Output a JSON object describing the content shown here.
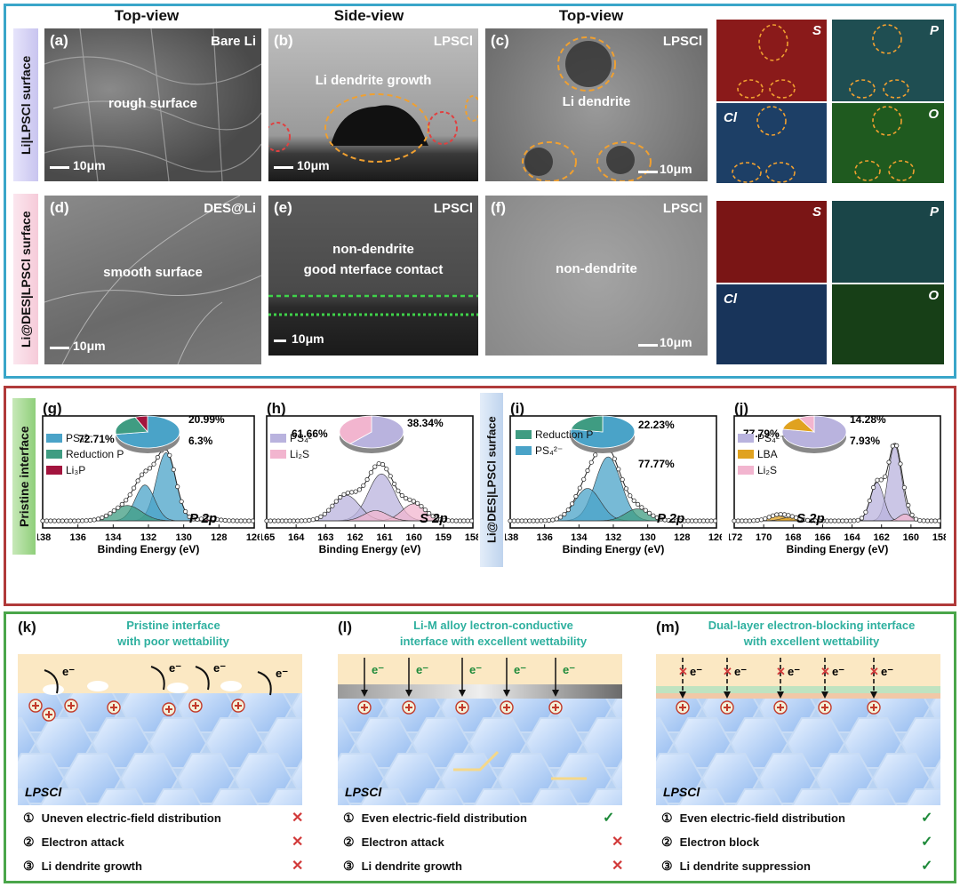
{
  "column_heads": {
    "top_view_1": "Top-view",
    "side_view": "Side-view",
    "top_view_2": "Top-view"
  },
  "row_labels": {
    "row1": "Li|LPSCl surface",
    "row2": "Li@DES|LPSCl surface",
    "pristine": "Pristine interface",
    "des": "Li@DES|LPSCl surface"
  },
  "panels": {
    "a": {
      "label": "(a)",
      "sample": "Bare Li",
      "annotation": "rough surface",
      "scale": "10μm"
    },
    "b": {
      "label": "(b)",
      "sample": "LPSCl",
      "annotation": "Li dendrite growth",
      "scale": "10μm"
    },
    "c": {
      "label": "(c)",
      "sample": "LPSCl",
      "annotation": "Li dendrite",
      "scale": "10μm"
    },
    "d": {
      "label": "(d)",
      "sample": "DES@Li",
      "annotation": "smooth surface",
      "scale": "10μm"
    },
    "e": {
      "label": "(e)",
      "sample": "LPSCl",
      "annotation_1": "non-dendrite",
      "annotation_2": "good nterface contact",
      "scale": "10μm"
    },
    "f": {
      "label": "(f)",
      "sample": "LPSCl",
      "annotation": "non-dendrite",
      "scale": "10μm"
    }
  },
  "eds_elements": [
    "S",
    "P",
    "Cl",
    "O"
  ],
  "eds_colors": {
    "S": "#8a1a1a",
    "P": "#1f4e52",
    "Cl": "#1d3f66",
    "O": "#1f5a1f"
  },
  "xps_axis_label": "Binding Energy (eV)",
  "chart_data": [
    {
      "type": "line",
      "panel": "(g)",
      "peak_label": "P 2p",
      "xlabel": "Binding Energy (eV)",
      "xlim": [
        138,
        126
      ],
      "x_ticks": [
        138,
        136,
        134,
        132,
        130,
        128,
        126
      ],
      "legend": [
        "PS₄²⁻",
        "Reduction P",
        "Li₃P"
      ],
      "peaks": [
        {
          "name": "PS₄²⁻",
          "center": 131.0,
          "height": 0.8,
          "width": 0.55
        },
        {
          "name": "PS₄²⁻",
          "center": 132.2,
          "height": 0.42,
          "width": 0.55
        },
        {
          "name": "Reduction P",
          "center": 133.2,
          "height": 0.18,
          "width": 0.8
        },
        {
          "name": "Li₃P",
          "center": 128.6,
          "height": 0.03,
          "width": 0.5
        }
      ],
      "pie": [
        {
          "name": "PS₄²⁻",
          "value": 72.71,
          "label": "72.71%"
        },
        {
          "name": "Reduction P",
          "value": 20.99,
          "label": "20.99%"
        },
        {
          "name": "Li₃P",
          "value": 6.3,
          "label": "6.3%"
        }
      ]
    },
    {
      "type": "line",
      "panel": "(h)",
      "peak_label": "S 2p",
      "xlabel": "Binding Energy (eV)",
      "xlim": [
        165,
        158
      ],
      "x_ticks": [
        165,
        164,
        163,
        162,
        161,
        160,
        159,
        158
      ],
      "legend": [
        "PS₄²⁻",
        "Li₂S"
      ],
      "peaks": [
        {
          "name": "PS₄²⁻",
          "center": 161.1,
          "height": 0.55,
          "width": 0.45
        },
        {
          "name": "PS₄²⁻",
          "center": 162.3,
          "height": 0.3,
          "width": 0.45
        },
        {
          "name": "Li₂S",
          "center": 160.0,
          "height": 0.2,
          "width": 0.4
        },
        {
          "name": "Li₂S",
          "center": 161.3,
          "height": 0.12,
          "width": 0.4
        }
      ],
      "pie": [
        {
          "name": "PS₄²⁻",
          "value": 61.66,
          "label": "61.66%"
        },
        {
          "name": "Li₂S",
          "value": 38.34,
          "label": "38.34%"
        }
      ]
    },
    {
      "type": "line",
      "panel": "(i)",
      "peak_label": "P 2p",
      "xlabel": "Binding Energy (eV)",
      "xlim": [
        138,
        126
      ],
      "x_ticks": [
        138,
        136,
        134,
        132,
        130,
        128,
        126
      ],
      "legend": [
        "Reduction P",
        "PS₄²⁻"
      ],
      "peaks": [
        {
          "name": "PS₄²⁻",
          "center": 132.3,
          "height": 0.75,
          "width": 0.75
        },
        {
          "name": "PS₄²⁻",
          "center": 133.5,
          "height": 0.38,
          "width": 0.75
        },
        {
          "name": "Reduction P",
          "center": 130.6,
          "height": 0.14,
          "width": 0.7
        }
      ],
      "pie": [
        {
          "name": "PS₄²⁻",
          "value": 77.77,
          "label": "77.77%"
        },
        {
          "name": "Reduction P",
          "value": 22.23,
          "label": "22.23%"
        }
      ]
    },
    {
      "type": "line",
      "panel": "(j)",
      "peak_label": "S 2p",
      "xlabel": "Binding Energy (eV)",
      "xlim": [
        172,
        158
      ],
      "x_ticks": [
        172,
        170,
        168,
        166,
        164,
        162,
        160,
        158
      ],
      "legend": [
        "PS₄²⁻",
        "LBA",
        "Li₂S"
      ],
      "peaks": [
        {
          "name": "PS₄²⁻",
          "center": 161.1,
          "height": 0.88,
          "width": 0.45
        },
        {
          "name": "PS₄²⁻",
          "center": 162.3,
          "height": 0.45,
          "width": 0.45
        },
        {
          "name": "LBA",
          "center": 169.1,
          "height": 0.06,
          "width": 0.6
        },
        {
          "name": "LBA",
          "center": 168.2,
          "height": 0.04,
          "width": 0.6
        },
        {
          "name": "Li₂S",
          "center": 160.4,
          "height": 0.08,
          "width": 0.4
        }
      ],
      "pie": [
        {
          "name": "PS₄²⁻",
          "value": 77.79,
          "label": "77.79%"
        },
        {
          "name": "LBA",
          "value": 14.28,
          "label": "14.28%"
        },
        {
          "name": "Li₂S",
          "value": 7.93,
          "label": "7.93%"
        }
      ]
    }
  ],
  "schematics": {
    "k": {
      "label": "(k)",
      "title_1": "Pristine interface",
      "title_2": "with poor wettability",
      "layer": "LPSCl",
      "electron": "e⁻",
      "items": [
        {
          "num": "①",
          "text": "Uneven electric-field  distribution",
          "mark": "✕"
        },
        {
          "num": "②",
          "text": "Electron attack",
          "mark": "✕"
        },
        {
          "num": "③",
          "text": "Li dendrite growth",
          "mark": "✕"
        }
      ]
    },
    "l": {
      "label": "(l)",
      "title_1": "Li-M alloy  lectron-conductive",
      "title_2": "interface with excellent wettability",
      "layer": "LPSCl",
      "electron": "e⁻",
      "items": [
        {
          "num": "①",
          "text": "Even electric-field  distribution",
          "mark": "✓"
        },
        {
          "num": "②",
          "text": "Electron attack",
          "mark": "✕"
        },
        {
          "num": "③",
          "text": "Li dendrite growth",
          "mark": "✕"
        }
      ]
    },
    "m": {
      "label": "(m)",
      "title_1": "Dual-layer electron-blocking interface",
      "title_2": "with excellent wettability",
      "layer": "LPSCl",
      "electron": "e⁻",
      "items": [
        {
          "num": "①",
          "text": "Even electric-field  distribution",
          "mark": "✓"
        },
        {
          "num": "②",
          "text": "Electron block",
          "mark": "✓"
        },
        {
          "num": "③",
          "text": "Li dendrite suppression",
          "mark": "✓"
        }
      ]
    }
  },
  "colors": {
    "ps4": "#4aa3c8",
    "reduction_p": "#3f9c82",
    "li3p": "#a3143e",
    "li2s": "#f2b5cf",
    "ps4_s": "#b9b3de",
    "lba": "#e0a21f",
    "teal_title": "#2fb09f"
  }
}
